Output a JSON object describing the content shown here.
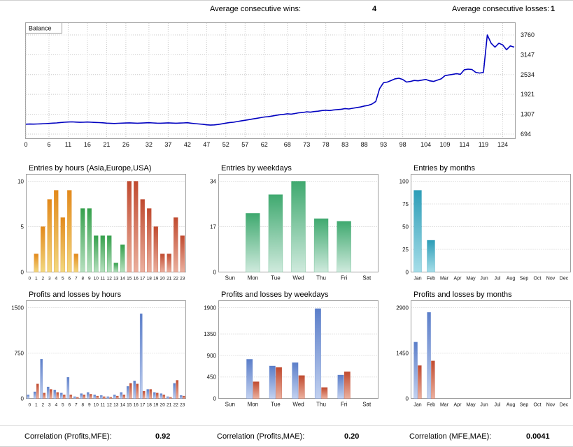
{
  "header": {
    "avg_wins_label": "Average consecutive wins:",
    "avg_wins_value": "4",
    "avg_losses_label": "Average consecutive losses:",
    "avg_losses_value": "1"
  },
  "footer": {
    "items": [
      {
        "label": "Correlation (Profits,MFE):",
        "value": "0.92"
      },
      {
        "label": "Correlation (Profits,MAE):",
        "value": "0.20"
      },
      {
        "label": "Correlation (MFE,MAE):",
        "value": "0.0041"
      }
    ]
  },
  "colors": {
    "line": "#0000C0",
    "grid": "#C9C9C9",
    "border": "#A0A0A0",
    "asia": [
      "#E2891B",
      "#F2D980"
    ],
    "europe": [
      "#35A04C",
      "#B8E0C0"
    ],
    "usa": [
      "#C04A2F",
      "#EBB09E"
    ],
    "weekday": [
      "#3FA96F",
      "#CFEADD"
    ],
    "month": [
      "#2D9DB7",
      "#A6DEE9"
    ],
    "profit": [
      "#5B7EC9",
      "#C2D1F0"
    ],
    "loss": [
      "#C04A2F",
      "#EBB09E"
    ]
  },
  "chart_data": [
    {
      "id": "balance",
      "type": "line",
      "title": "Balance",
      "x_ticks": [
        0,
        6,
        11,
        16,
        21,
        26,
        32,
        37,
        42,
        47,
        52,
        57,
        62,
        68,
        73,
        78,
        83,
        88,
        93,
        98,
        104,
        109,
        114,
        119,
        124
      ],
      "y_ticks": [
        694,
        1307,
        1921,
        2534,
        3147,
        3760
      ],
      "ylim": [
        694,
        3760
      ],
      "xlim": [
        0,
        127
      ],
      "values": [
        1000,
        1005,
        1002,
        1008,
        1012,
        1018,
        1025,
        1032,
        1040,
        1052,
        1060,
        1068,
        1072,
        1065,
        1058,
        1062,
        1068,
        1062,
        1055,
        1050,
        1044,
        1032,
        1026,
        1022,
        1028,
        1034,
        1038,
        1042,
        1036,
        1030,
        1036,
        1042,
        1046,
        1040,
        1034,
        1030,
        1036,
        1042,
        1036,
        1030,
        1036,
        1040,
        1046,
        1030,
        1018,
        1008,
        998,
        982,
        972,
        978,
        992,
        1012,
        1032,
        1052,
        1062,
        1082,
        1102,
        1122,
        1142,
        1162,
        1182,
        1202,
        1222,
        1232,
        1252,
        1272,
        1292,
        1302,
        1322,
        1312,
        1332,
        1352,
        1362,
        1382,
        1372,
        1392,
        1402,
        1422,
        1432,
        1422,
        1442,
        1452,
        1462,
        1482,
        1472,
        1492,
        1512,
        1532,
        1562,
        1582,
        1622,
        1702,
        2102,
        2282,
        2302,
        2352,
        2402,
        2422,
        2382,
        2302,
        2322,
        2352,
        2342,
        2362,
        2382,
        2342,
        2322,
        2362,
        2402,
        2502,
        2522,
        2542,
        2562,
        2542,
        2682,
        2702,
        2692,
        2602,
        2582,
        2602,
        3760,
        3502,
        3382,
        3502,
        3452,
        3302,
        3422,
        3382
      ]
    },
    {
      "id": "entries_by_hours",
      "type": "bar",
      "title": "Entries by hours (Asia,Europe,USA)",
      "categories": [
        "0",
        "1",
        "2",
        "3",
        "4",
        "5",
        "6",
        "7",
        "8",
        "9",
        "10",
        "11",
        "12",
        "13",
        "14",
        "15",
        "16",
        "17",
        "18",
        "19",
        "20",
        "21",
        "22",
        "23"
      ],
      "values": [
        0,
        2,
        5,
        8,
        9,
        6,
        9,
        2,
        7,
        7,
        4,
        4,
        4,
        1,
        3,
        10,
        10,
        8,
        7,
        5,
        2,
        2,
        6,
        4
      ],
      "bar_colors": [
        "asia",
        "asia",
        "asia",
        "asia",
        "asia",
        "asia",
        "asia",
        "asia",
        "europe",
        "europe",
        "europe",
        "europe",
        "europe",
        "europe",
        "europe",
        "usa",
        "usa",
        "usa",
        "usa",
        "usa",
        "usa",
        "usa",
        "usa",
        "usa"
      ],
      "y_ticks": [
        0,
        5,
        10
      ],
      "ylim": [
        0,
        10
      ]
    },
    {
      "id": "entries_by_weekdays",
      "type": "bar",
      "title": "Entries by weekdays",
      "categories": [
        "Sun",
        "Mon",
        "Tue",
        "Wed",
        "Thu",
        "Fri",
        "Sat"
      ],
      "values": [
        0,
        22,
        29,
        34,
        20,
        19,
        0
      ],
      "color": "weekday",
      "y_ticks": [
        0,
        17,
        34
      ],
      "ylim": [
        0,
        34
      ]
    },
    {
      "id": "entries_by_months",
      "type": "bar",
      "title": "Entries by months",
      "categories": [
        "Jan",
        "Feb",
        "Mar",
        "Apr",
        "May",
        "Jun",
        "Jul",
        "Aug",
        "Sep",
        "Oct",
        "Nov",
        "Dec"
      ],
      "values": [
        90,
        35,
        0,
        0,
        0,
        0,
        0,
        0,
        0,
        0,
        0,
        0
      ],
      "color": "month",
      "y_ticks": [
        0,
        25,
        50,
        75,
        100
      ],
      "ylim": [
        0,
        100
      ]
    },
    {
      "id": "pl_by_hours",
      "type": "bar",
      "title": "Profits and losses by hours",
      "categories": [
        "0",
        "1",
        "2",
        "3",
        "4",
        "5",
        "6",
        "7",
        "8",
        "9",
        "10",
        "11",
        "12",
        "13",
        "14",
        "15",
        "16",
        "17",
        "18",
        "19",
        "20",
        "21",
        "22",
        "23"
      ],
      "series": [
        {
          "name": "Profit",
          "color": "profit",
          "values": [
            60,
            110,
            650,
            190,
            140,
            90,
            350,
            30,
            80,
            100,
            60,
            50,
            30,
            60,
            100,
            200,
            290,
            1400,
            150,
            100,
            80,
            30,
            250,
            50
          ]
        },
        {
          "name": "Loss",
          "color": "loss",
          "values": [
            0,
            240,
            90,
            150,
            100,
            60,
            60,
            20,
            60,
            70,
            40,
            30,
            20,
            40,
            60,
            250,
            240,
            120,
            150,
            90,
            60,
            20,
            300,
            40
          ]
        }
      ],
      "y_ticks": [
        0,
        750,
        1500
      ],
      "ylim": [
        0,
        1500
      ]
    },
    {
      "id": "pl_by_weekdays",
      "type": "bar",
      "title": "Profits and losses by weekdays",
      "categories": [
        "Sun",
        "Mon",
        "Tue",
        "Wed",
        "Thu",
        "Fri",
        "Sat"
      ],
      "series": [
        {
          "name": "Profit",
          "color": "profit",
          "values": [
            0,
            820,
            680,
            750,
            1880,
            490,
            0
          ]
        },
        {
          "name": "Loss",
          "color": "loss",
          "values": [
            0,
            350,
            650,
            480,
            230,
            560,
            0
          ]
        }
      ],
      "y_ticks": [
        0,
        450,
        900,
        1350,
        1900
      ],
      "ylim": [
        0,
        1900
      ]
    },
    {
      "id": "pl_by_months",
      "type": "bar",
      "title": "Profits and losses by months",
      "categories": [
        "Jan",
        "Feb",
        "Mar",
        "Apr",
        "May",
        "Jun",
        "Jul",
        "Aug",
        "Sep",
        "Oct",
        "Nov",
        "Dec"
      ],
      "series": [
        {
          "name": "Profit",
          "color": "profit",
          "values": [
            1800,
            2750,
            0,
            0,
            0,
            0,
            0,
            0,
            0,
            0,
            0,
            0
          ]
        },
        {
          "name": "Loss",
          "color": "loss",
          "values": [
            1050,
            1200,
            0,
            0,
            0,
            0,
            0,
            0,
            0,
            0,
            0,
            0
          ]
        }
      ],
      "y_ticks": [
        0,
        1450,
        2900
      ],
      "ylim": [
        0,
        2900
      ]
    }
  ]
}
